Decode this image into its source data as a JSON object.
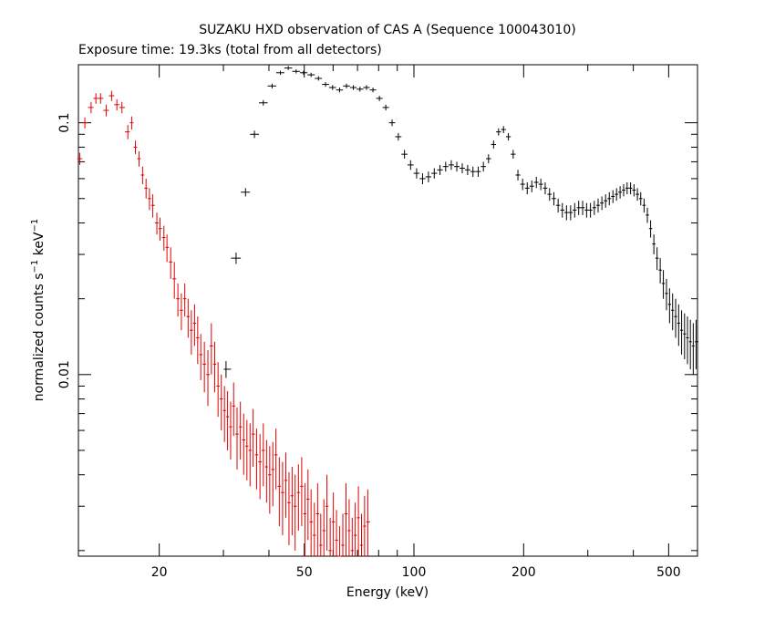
{
  "chart_data": {
    "type": "scatter",
    "title": "SUZAKU HXD observation of CAS A (Sequence 100043010)",
    "subtitle": "Exposure time: 19.3ks (total from all detectors)",
    "xlabel": "Energy (keV)",
    "ylabel_main": "normalized counts s",
    "ylabel_sup1": "−1",
    "ylabel_mid": " keV",
    "ylabel_sup2": "−1",
    "xscale": "log",
    "yscale": "log",
    "xlim": [
      12,
      600
    ],
    "ylim": [
      0.0019,
      0.17
    ],
    "x_ticks": [
      {
        "value": 20,
        "label": "20"
      },
      {
        "value": 50,
        "label": "50"
      },
      {
        "value": 100,
        "label": "100"
      },
      {
        "value": 200,
        "label": "200"
      },
      {
        "value": 500,
        "label": "500"
      }
    ],
    "y_ticks": [
      {
        "value": 0.1,
        "label": "0.1"
      },
      {
        "value": 0.01,
        "label": "0.01"
      }
    ],
    "colors": {
      "pin": "#e00000",
      "gso": "#000000"
    },
    "series": [
      {
        "color": "#e00000",
        "points": [
          [
            12.1,
            0.072,
            0.004
          ],
          [
            12.5,
            0.1,
            0.005
          ],
          [
            13.0,
            0.115,
            0.006
          ],
          [
            13.4,
            0.125,
            0.006
          ],
          [
            13.8,
            0.125,
            0.006
          ],
          [
            14.3,
            0.112,
            0.006
          ],
          [
            14.8,
            0.128,
            0.006
          ],
          [
            15.3,
            0.118,
            0.006
          ],
          [
            15.8,
            0.115,
            0.006
          ],
          [
            16.4,
            0.092,
            0.006
          ],
          [
            16.8,
            0.1,
            0.006
          ],
          [
            17.2,
            0.08,
            0.005
          ],
          [
            17.6,
            0.072,
            0.005
          ],
          [
            18.0,
            0.062,
            0.005
          ],
          [
            18.4,
            0.055,
            0.005
          ],
          [
            18.8,
            0.05,
            0.005
          ],
          [
            19.2,
            0.047,
            0.005
          ],
          [
            19.7,
            0.04,
            0.004
          ],
          [
            20.1,
            0.038,
            0.004
          ],
          [
            20.6,
            0.035,
            0.004
          ],
          [
            21.0,
            0.032,
            0.004
          ],
          [
            21.5,
            0.028,
            0.004
          ],
          [
            22.0,
            0.024,
            0.004
          ],
          [
            22.5,
            0.02,
            0.003
          ],
          [
            23.0,
            0.018,
            0.003
          ],
          [
            23.5,
            0.02,
            0.003
          ],
          [
            24.0,
            0.017,
            0.003
          ],
          [
            24.5,
            0.015,
            0.003
          ],
          [
            25.0,
            0.016,
            0.003
          ],
          [
            25.5,
            0.014,
            0.003
          ],
          [
            26.0,
            0.012,
            0.0025
          ],
          [
            26.6,
            0.011,
            0.0025
          ],
          [
            27.2,
            0.01,
            0.0025
          ],
          [
            27.8,
            0.013,
            0.003
          ],
          [
            28.4,
            0.011,
            0.0025
          ],
          [
            29.0,
            0.009,
            0.0022
          ],
          [
            29.6,
            0.008,
            0.002
          ],
          [
            30.2,
            0.0072,
            0.0018
          ],
          [
            30.8,
            0.0068,
            0.0018
          ],
          [
            31.4,
            0.0062,
            0.0016
          ],
          [
            32.0,
            0.0075,
            0.0018
          ],
          [
            32.7,
            0.0058,
            0.0016
          ],
          [
            33.4,
            0.0062,
            0.0016
          ],
          [
            34.1,
            0.0055,
            0.0015
          ],
          [
            34.8,
            0.0052,
            0.0014
          ],
          [
            35.5,
            0.005,
            0.0014
          ],
          [
            36.2,
            0.0058,
            0.0015
          ],
          [
            37.0,
            0.0048,
            0.0013
          ],
          [
            37.8,
            0.0045,
            0.0013
          ],
          [
            38.6,
            0.005,
            0.0014
          ],
          [
            39.4,
            0.0043,
            0.0012
          ],
          [
            40.2,
            0.004,
            0.0012
          ],
          [
            41.0,
            0.0042,
            0.0012
          ],
          [
            41.8,
            0.0048,
            0.0013
          ],
          [
            42.7,
            0.0036,
            0.0011
          ],
          [
            43.6,
            0.0034,
            0.0011
          ],
          [
            44.5,
            0.0038,
            0.0011
          ],
          [
            45.4,
            0.0031,
            0.001
          ],
          [
            46.3,
            0.0033,
            0.001
          ],
          [
            47.2,
            0.003,
            0.001
          ],
          [
            48.2,
            0.0034,
            0.001
          ],
          [
            49.2,
            0.0036,
            0.0011
          ],
          [
            50.2,
            0.0028,
            0.0009
          ],
          [
            51.2,
            0.0032,
            0.001
          ],
          [
            52.2,
            0.0026,
            0.0009
          ],
          [
            53.3,
            0.0023,
            0.0008
          ],
          [
            54.4,
            0.0028,
            0.0009
          ],
          [
            55.5,
            0.0021,
            0.0007
          ],
          [
            56.6,
            0.0024,
            0.0008
          ],
          [
            57.7,
            0.003,
            0.001
          ],
          [
            58.9,
            0.002,
            0.0007
          ],
          [
            60.1,
            0.0026,
            0.0008
          ],
          [
            61.3,
            0.0022,
            0.0007
          ],
          [
            62.5,
            0.0019,
            0.0006
          ],
          [
            63.8,
            0.0021,
            0.0007
          ],
          [
            65.1,
            0.0028,
            0.0009
          ],
          [
            66.4,
            0.0024,
            0.0008
          ],
          [
            67.7,
            0.002,
            0.0007
          ],
          [
            69.0,
            0.0023,
            0.0008
          ],
          [
            70.4,
            0.0027,
            0.0009
          ],
          [
            71.8,
            0.0021,
            0.0007
          ],
          [
            73.2,
            0.0025,
            0.0008
          ],
          [
            74.7,
            0.0026,
            0.0009
          ]
        ]
      },
      {
        "color": "#000000",
        "points": [
          [
            30.5,
            0.0105,
            0.0008
          ],
          [
            32.5,
            0.029,
            0.0015
          ],
          [
            34.5,
            0.053,
            0.002
          ],
          [
            36.5,
            0.09,
            0.003
          ],
          [
            38.6,
            0.12,
            0.003
          ],
          [
            40.8,
            0.14,
            0.003
          ],
          [
            43.0,
            0.158,
            0.003
          ],
          [
            45.2,
            0.165,
            0.003
          ],
          [
            47.5,
            0.16,
            0.003
          ],
          [
            49.8,
            0.158,
            0.003
          ],
          [
            52.2,
            0.155,
            0.003
          ],
          [
            54.7,
            0.15,
            0.003
          ],
          [
            57.2,
            0.142,
            0.003
          ],
          [
            59.8,
            0.138,
            0.003
          ],
          [
            62.5,
            0.135,
            0.003
          ],
          [
            65.3,
            0.14,
            0.003
          ],
          [
            68.2,
            0.138,
            0.003
          ],
          [
            71.1,
            0.136,
            0.003
          ],
          [
            74.1,
            0.138,
            0.003
          ],
          [
            77.2,
            0.135,
            0.003
          ],
          [
            80.4,
            0.125,
            0.003
          ],
          [
            83.7,
            0.115,
            0.003
          ],
          [
            87.1,
            0.1,
            0.003
          ],
          [
            90.6,
            0.088,
            0.003
          ],
          [
            94.2,
            0.075,
            0.003
          ],
          [
            97.9,
            0.068,
            0.003
          ],
          [
            101.7,
            0.063,
            0.003
          ],
          [
            105.6,
            0.06,
            0.003
          ],
          [
            109.6,
            0.061,
            0.003
          ],
          [
            113.7,
            0.063,
            0.003
          ],
          [
            117.9,
            0.065,
            0.003
          ],
          [
            122.2,
            0.067,
            0.003
          ],
          [
            126.6,
            0.068,
            0.003
          ],
          [
            131.1,
            0.067,
            0.003
          ],
          [
            135.7,
            0.066,
            0.003
          ],
          [
            140.4,
            0.065,
            0.003
          ],
          [
            145.2,
            0.064,
            0.003
          ],
          [
            150.1,
            0.064,
            0.003
          ],
          [
            155.1,
            0.067,
            0.003
          ],
          [
            160.2,
            0.072,
            0.003
          ],
          [
            165.4,
            0.082,
            0.003
          ],
          [
            170.7,
            0.092,
            0.003
          ],
          [
            176.1,
            0.094,
            0.003
          ],
          [
            181.6,
            0.088,
            0.003
          ],
          [
            187.2,
            0.075,
            0.003
          ],
          [
            192.9,
            0.062,
            0.003
          ],
          [
            198.7,
            0.057,
            0.003
          ],
          [
            204.6,
            0.055,
            0.003
          ],
          [
            210.6,
            0.056,
            0.003
          ],
          [
            216.7,
            0.058,
            0.003
          ],
          [
            222.9,
            0.057,
            0.003
          ],
          [
            229.2,
            0.055,
            0.003
          ],
          [
            235.6,
            0.052,
            0.003
          ],
          [
            242.1,
            0.05,
            0.003
          ],
          [
            248.7,
            0.047,
            0.003
          ],
          [
            255.4,
            0.045,
            0.003
          ],
          [
            262.2,
            0.044,
            0.003
          ],
          [
            269.1,
            0.044,
            0.003
          ],
          [
            276.1,
            0.045,
            0.003
          ],
          [
            283.2,
            0.046,
            0.003
          ],
          [
            290.4,
            0.046,
            0.003
          ],
          [
            297.7,
            0.045,
            0.003
          ],
          [
            305.1,
            0.045,
            0.003
          ],
          [
            312.6,
            0.046,
            0.003
          ],
          [
            320.2,
            0.047,
            0.003
          ],
          [
            327.9,
            0.048,
            0.003
          ],
          [
            335.7,
            0.049,
            0.003
          ],
          [
            343.6,
            0.05,
            0.003
          ],
          [
            351.6,
            0.051,
            0.003
          ],
          [
            359.7,
            0.052,
            0.003
          ],
          [
            367.9,
            0.053,
            0.003
          ],
          [
            376.2,
            0.054,
            0.003
          ],
          [
            384.6,
            0.055,
            0.003
          ],
          [
            393.1,
            0.055,
            0.003
          ],
          [
            401.7,
            0.054,
            0.003
          ],
          [
            410.4,
            0.052,
            0.003
          ],
          [
            419.2,
            0.05,
            0.003
          ],
          [
            428.1,
            0.047,
            0.003
          ],
          [
            437.1,
            0.043,
            0.003
          ],
          [
            446.2,
            0.038,
            0.003
          ],
          [
            455.4,
            0.033,
            0.003
          ],
          [
            464.7,
            0.029,
            0.003
          ],
          [
            474.1,
            0.026,
            0.003
          ],
          [
            483.6,
            0.023,
            0.003
          ],
          [
            493.2,
            0.021,
            0.003
          ],
          [
            502.9,
            0.019,
            0.003
          ],
          [
            512.7,
            0.018,
            0.003
          ],
          [
            522.6,
            0.017,
            0.003
          ],
          [
            532.6,
            0.016,
            0.003
          ],
          [
            542.7,
            0.015,
            0.003
          ],
          [
            552.9,
            0.0145,
            0.003
          ],
          [
            563.2,
            0.014,
            0.003
          ],
          [
            573.6,
            0.0135,
            0.003
          ],
          [
            584.1,
            0.013,
            0.003
          ],
          [
            594.7,
            0.0135,
            0.003
          ]
        ]
      }
    ]
  }
}
